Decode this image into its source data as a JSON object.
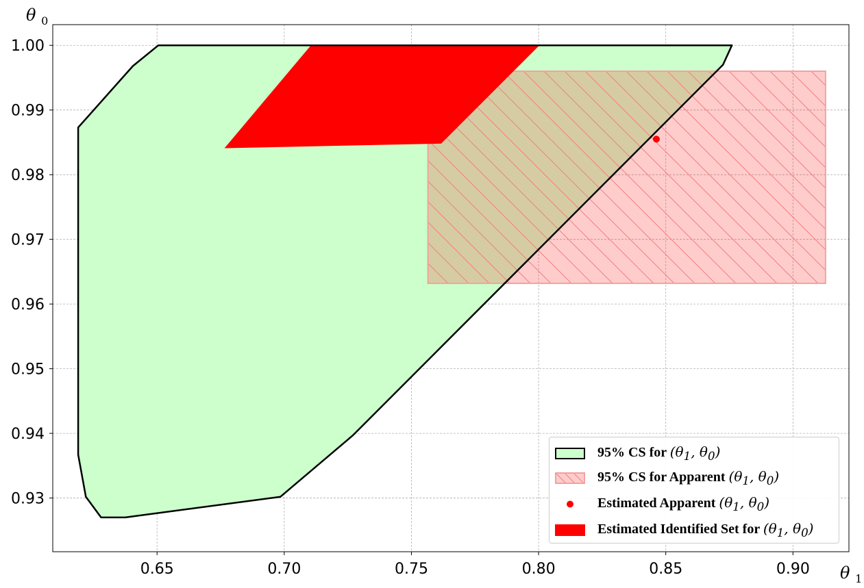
{
  "chart_data": {
    "type": "area",
    "title": "",
    "xlabel": "θ1",
    "ylabel": "θ0",
    "xlim": [
      0.609,
      0.922
    ],
    "ylim": [
      0.9217,
      1.0032
    ],
    "xticks": [
      0.65,
      0.7,
      0.75,
      0.8,
      0.85,
      0.9
    ],
    "xtick_labels": [
      "0.65",
      "0.70",
      "0.75",
      "0.80",
      "0.85",
      "0.90"
    ],
    "yticks": [
      0.93,
      0.94,
      0.95,
      0.96,
      0.97,
      0.98,
      0.99,
      1.0
    ],
    "ytick_labels": [
      "0.93",
      "0.94",
      "0.95",
      "0.96",
      "0.97",
      "0.98",
      "0.99",
      "1.00"
    ],
    "grid": true,
    "legend_position": "lower-right",
    "series": [
      {
        "key": "cs",
        "name": "95% CS for (θ1, θ0)",
        "label_prefix": "95% CS for ",
        "kind": "polygon",
        "fill": "#ccffcc",
        "stroke": "#000000",
        "points": [
          [
            0.6505,
            1.0
          ],
          [
            0.876,
            1.0
          ],
          [
            0.8725,
            0.997
          ],
          [
            0.727,
            0.9397
          ],
          [
            0.6985,
            0.9302
          ],
          [
            0.6375,
            0.927
          ],
          [
            0.628,
            0.927
          ],
          [
            0.622,
            0.9302
          ],
          [
            0.619,
            0.9367
          ],
          [
            0.619,
            0.9873
          ],
          [
            0.6405,
            0.9968
          ]
        ]
      },
      {
        "key": "apparent_cs",
        "name": "95% CS for Apparent (θ1, θ0)",
        "label_prefix": "95% CS for Apparent ",
        "kind": "rect",
        "fill": "#ff0000",
        "fill_opacity": 0.2,
        "hatch": "\\\\",
        "x0": 0.7565,
        "x1": 0.9128,
        "y0": 0.9632,
        "y1": 0.996
      },
      {
        "key": "point",
        "name": "Estimated Apparent (θ1, θ0)",
        "label_prefix": "Estimated Apparent ",
        "kind": "point",
        "color": "#ff0000",
        "x": 0.8463,
        "y": 0.9855
      },
      {
        "key": "idset",
        "name": "Estimated Identified Set for (θ1, θ0)",
        "label_prefix": "Estimated Identified Set for ",
        "kind": "polygon",
        "fill": "#ff0000",
        "points": [
          [
            0.7105,
            1.0
          ],
          [
            0.8003,
            1.0
          ],
          [
            0.7617,
            0.9848
          ],
          [
            0.6765,
            0.9841
          ]
        ]
      }
    ]
  }
}
